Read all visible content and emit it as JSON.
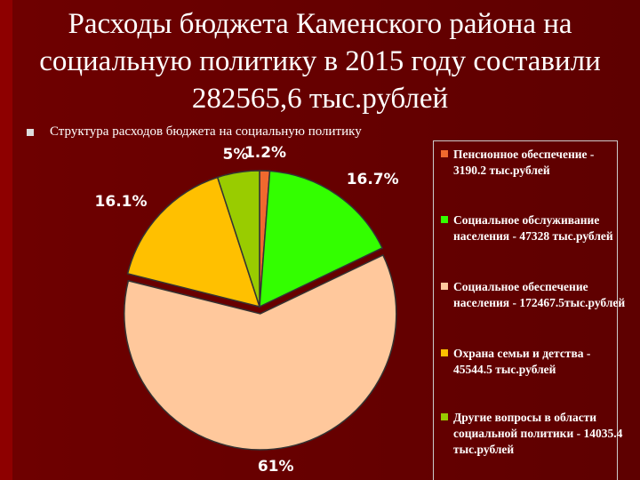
{
  "title": "Расходы бюджета Каменского района на социальную политику в 2015 году составили 282565,6 тыс.рублей",
  "chart_data": {
    "type": "pie",
    "title": "Структура расходов бюджета на социальную политику",
    "categories": [
      "Пенсионное обеспечение - 3190.2 тыс.рублей",
      "Социальное обслуживание населения - 47328 тыс.рублей",
      "Социальное обеспечение населения - 172467.5тыс.рублей",
      "Охрана семьи и детства - 45544.5 тыс.рублей",
      "Другие вопросы в области социальной политики - 14035.4 тыс.рублей"
    ],
    "values": [
      1.2,
      16.7,
      61,
      16.1,
      5
    ],
    "value_labels": [
      "1.2%",
      "16.7%",
      "61%",
      "16.1%",
      "5%"
    ],
    "colors": [
      "#f0692e",
      "#33ff00",
      "#ffc89c",
      "#ffc000",
      "#99cc00"
    ],
    "legend": "right"
  }
}
